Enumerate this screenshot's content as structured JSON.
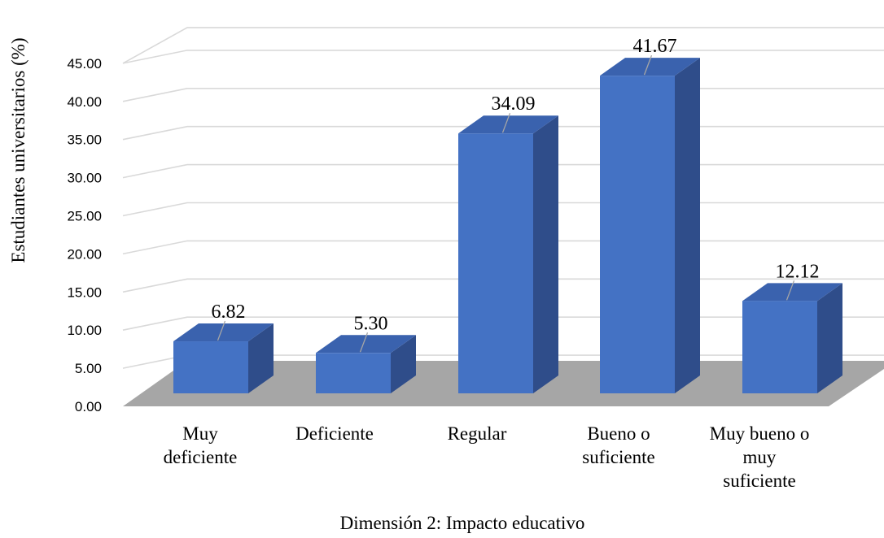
{
  "chart_data": {
    "type": "bar",
    "style": "3d-column",
    "categories": [
      [
        "Muy",
        "deficiente"
      ],
      [
        "Deficiente"
      ],
      [
        "Regular"
      ],
      [
        "Bueno o",
        "suficiente"
      ],
      [
        "Muy bueno o",
        "muy",
        "suficiente"
      ]
    ],
    "values": [
      6.82,
      5.3,
      34.09,
      41.67,
      12.12
    ],
    "data_labels": [
      "6.82",
      "5.30",
      "34.09",
      "41.67",
      "12.12"
    ],
    "y_ticks": [
      "0.00",
      "5.00",
      "10.00",
      "15.00",
      "20.00",
      "25.00",
      "30.00",
      "35.00",
      "40.00",
      "45.00"
    ],
    "ylim": [
      0,
      45
    ],
    "grid": true,
    "legend": "none",
    "xlabel": "Dimensión 2: Impacto educativo",
    "ylabel": "Estudiantes universitarios  (%)",
    "colors": {
      "bar_front": "#4472C4",
      "bar_side": "#2F4D8A",
      "bar_top": "#3A62AE",
      "floor": "#A6A6A6",
      "gridline": "#D9D9D9",
      "leader_line": "#A6A6A6"
    }
  }
}
